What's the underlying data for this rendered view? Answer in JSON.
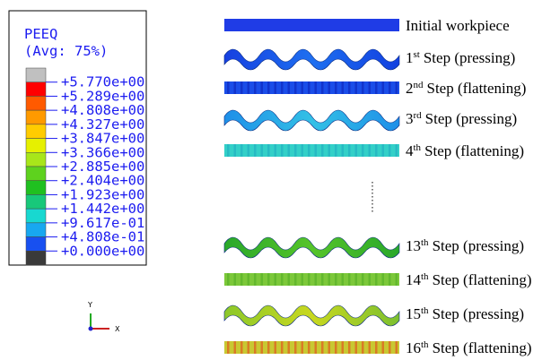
{
  "legend": {
    "title": "PEEQ",
    "subtitle": "(Avg: 75%)",
    "labels": [
      "+5.770e+00",
      "+5.289e+00",
      "+4.808e+00",
      "+4.327e+00",
      "+3.847e+00",
      "+3.366e+00",
      "+2.885e+00",
      "+2.404e+00",
      "+1.923e+00",
      "+1.442e+00",
      "+9.617e-01",
      "+4.808e-01",
      "+0.000e+00"
    ]
  },
  "axes": {
    "y": "Y",
    "x": "X"
  },
  "steps": [
    {
      "label": "Initial workpiece"
    },
    {
      "num": "1",
      "sup": "st",
      "text": "Step (pressing)"
    },
    {
      "num": "2",
      "sup": "nd",
      "text": "Step (flattening)"
    },
    {
      "num": "3",
      "sup": "rd",
      "text": "Step (pressing)"
    },
    {
      "num": "4",
      "sup": "th",
      "text": "Step (flattening)"
    },
    {
      "num": "13",
      "sup": "th",
      "text": "Step (pressing)"
    },
    {
      "num": "14",
      "sup": "th",
      "text": "Step (flattening)"
    },
    {
      "num": "15",
      "sup": "th",
      "text": "Step (pressing)"
    },
    {
      "num": "16",
      "sup": "th",
      "text": "Step (flattening)"
    }
  ]
}
